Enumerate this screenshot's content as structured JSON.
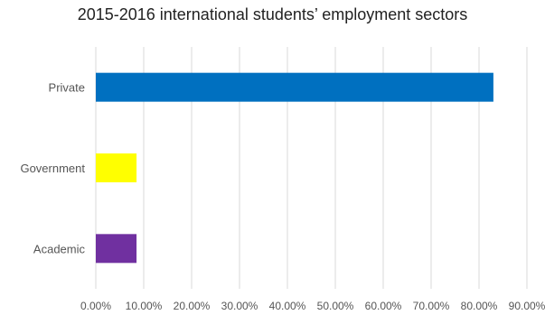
{
  "chart_data": {
    "type": "bar",
    "orientation": "horizontal",
    "title": "2015-2016 international students’ employment sectors",
    "categories": [
      "Private",
      "Government",
      "Academic"
    ],
    "values": [
      83.0,
      8.5,
      8.5
    ],
    "colors": [
      "#0070C0",
      "#FFFF00",
      "#7030A0"
    ],
    "xlim": [
      0,
      90
    ],
    "xticks": [
      0,
      10,
      20,
      30,
      40,
      50,
      60,
      70,
      80,
      90
    ],
    "tick_labels": [
      "0.00%",
      "10.00%",
      "20.00%",
      "30.00%",
      "40.00%",
      "50.00%",
      "60.00%",
      "70.00%",
      "80.00%",
      "90.00%"
    ],
    "xlabel": "",
    "ylabel": "",
    "grid": true,
    "legend": "none"
  }
}
